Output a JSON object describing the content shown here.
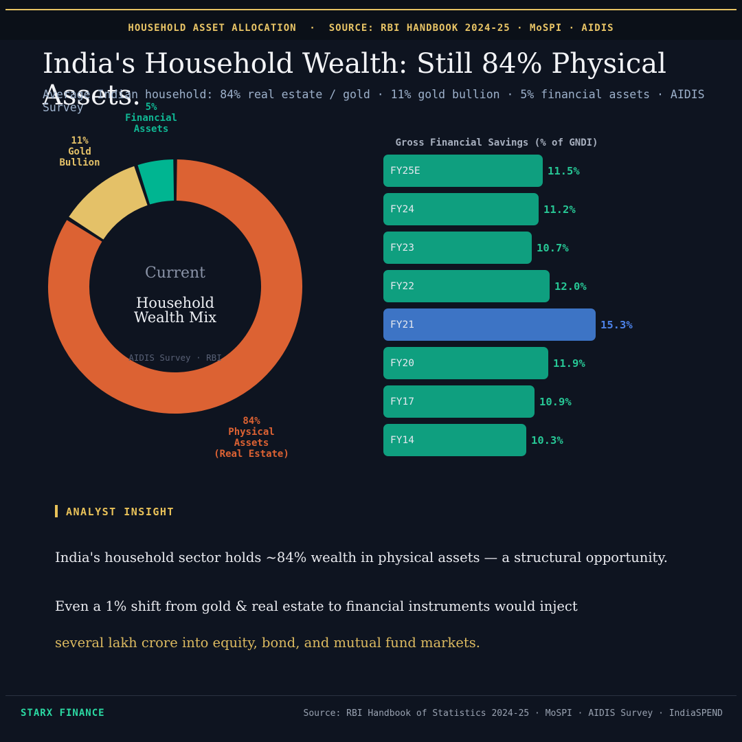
{
  "header": {
    "kicker": "HOUSEHOLD ASSET ALLOCATION  ·  SOURCE: RBI HANDBOOK 2024-25 · MoSPI · AIDIS"
  },
  "title": "India's Household Wealth: Still 84% Physical Assets.",
  "subtitle": "Average Indian household: 84% real estate / gold · 11% gold bullion · 5% financial assets · AIDIS Survey",
  "donut": {
    "center_top": "Current",
    "center_main": "Household\nWealth Mix",
    "center_source": "AIDIS Survey · RBI",
    "segments": [
      {
        "name": "Physical Assets (Real Estate)",
        "pct": 84,
        "color": "#dc6233",
        "label": "84%\nPhysical\nAssets\n(Real Estate)"
      },
      {
        "name": "Gold Bullion",
        "pct": 11,
        "color": "#e4c168",
        "label": "11%\nGold\nBullion"
      },
      {
        "name": "Financial Assets",
        "pct": 5,
        "color": "#00b591",
        "label": "5%\nFinancial\nAssets"
      }
    ]
  },
  "bars": {
    "title": "Gross Financial Savings (% of GNDI)",
    "rows": [
      {
        "label": "FY25E",
        "value": 11.5,
        "display": "11.5%",
        "highlight": false
      },
      {
        "label": "FY24",
        "value": 11.2,
        "display": "11.2%",
        "highlight": false
      },
      {
        "label": "FY23",
        "value": 10.7,
        "display": "10.7%",
        "highlight": false
      },
      {
        "label": "FY22",
        "value": 12.0,
        "display": "12.0%",
        "highlight": false
      },
      {
        "label": "FY21",
        "value": 15.3,
        "display": "15.3%",
        "highlight": true
      },
      {
        "label": "FY20",
        "value": 11.9,
        "display": "11.9%",
        "highlight": false
      },
      {
        "label": "FY17",
        "value": 10.9,
        "display": "10.9%",
        "highlight": false
      },
      {
        "label": "FY14",
        "value": 10.3,
        "display": "10.3%",
        "highlight": false
      }
    ],
    "colors": {
      "bar": "#0f9f7f",
      "bar_highlight": "#3d74c5",
      "value": "#27c795",
      "value_highlight": "#4d82e8"
    }
  },
  "insight": {
    "label": "ANALYST INSIGHT",
    "p1": "India's household sector holds ~84% wealth in physical assets — a structural opportunity.",
    "p2": "Even a 1% shift from gold & real estate to financial instruments would inject",
    "p3": "several lakh crore into equity, bond, and mutual fund markets."
  },
  "footer": {
    "brand": "STARX FINANCE",
    "source": "Source: RBI Handbook of Statistics 2024-25 · MoSPI · AIDIS Survey · IndiaSPEND"
  },
  "colors": {
    "background": "#0e1420",
    "background_top": "#0b1018",
    "accent_gold": "#e8c464",
    "accent_teal": "#2bd9a2",
    "donut_orange": "#dc6233",
    "donut_gold": "#e4c168",
    "donut_teal": "#00b591"
  },
  "chart_data": [
    {
      "type": "pie",
      "title": "Current Household Wealth Mix",
      "subtitle": "AIDIS Survey · RBI",
      "labels": [
        "Physical Assets (Real Estate)",
        "Gold Bullion",
        "Financial Assets"
      ],
      "values": [
        84,
        11,
        5
      ],
      "colors": [
        "#dc6233",
        "#e4c168",
        "#00b591"
      ],
      "donut": true,
      "start_angle_deg": 0,
      "direction": "clockwise"
    },
    {
      "type": "bar",
      "orientation": "horizontal",
      "title": "Gross Financial Savings (% of GNDI)",
      "categories": [
        "FY25E",
        "FY24",
        "FY23",
        "FY22",
        "FY21",
        "FY20",
        "FY17",
        "FY14"
      ],
      "values": [
        11.5,
        11.2,
        10.7,
        12.0,
        15.3,
        11.9,
        10.9,
        10.3
      ],
      "highlight_category": "FY21",
      "xlim": [
        0,
        16
      ],
      "value_suffix": "%",
      "grid": false,
      "legend": false
    }
  ]
}
